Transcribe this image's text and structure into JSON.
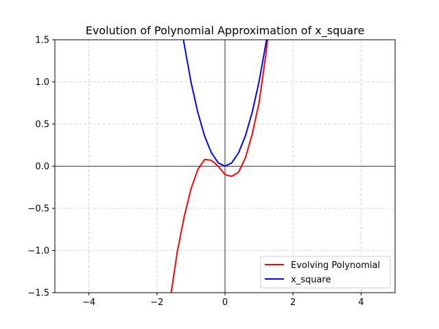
{
  "chart_data": {
    "type": "line",
    "title": "Evolution of Polynomial Approximation of x_square",
    "xlabel": "",
    "ylabel": "",
    "xlim": [
      -5,
      5
    ],
    "ylim": [
      -1.5,
      1.5
    ],
    "x_ticks": [
      -4,
      -2,
      0,
      2,
      4
    ],
    "y_ticks": [
      -1.5,
      -1.0,
      -0.5,
      0.0,
      0.5,
      1.0,
      1.5
    ],
    "x_tick_labels": [
      "−4",
      "−2",
      "0",
      "2",
      "4"
    ],
    "y_tick_labels": [
      "−1.5",
      "−1.0",
      "−0.5",
      "0.0",
      "0.5",
      "1.0",
      "1.5"
    ],
    "grid": true,
    "grid_style": "dashed",
    "legend_position": "lower-right",
    "series": [
      {
        "name": "Evolving Polynomial",
        "color": "#ff0000",
        "x": [
          -1.6,
          -1.4,
          -1.2,
          -1.0,
          -0.8,
          -0.6,
          -0.4,
          -0.2,
          0.0,
          0.2,
          0.4,
          0.6,
          0.8,
          1.0,
          1.2,
          1.3
        ],
        "y": [
          -1.55,
          -1.01,
          -0.6,
          -0.27,
          -0.04,
          0.08,
          0.07,
          0.0,
          -0.1,
          -0.12,
          -0.07,
          0.1,
          0.38,
          0.75,
          1.32,
          1.67
        ]
      },
      {
        "name": "x_square",
        "color": "#0000ff",
        "x": [
          -1.24,
          -1.0,
          -0.8,
          -0.6,
          -0.4,
          -0.2,
          0.0,
          0.2,
          0.4,
          0.6,
          0.8,
          1.0,
          1.24
        ],
        "y": [
          1.54,
          1.0,
          0.64,
          0.36,
          0.16,
          0.04,
          0.0,
          0.04,
          0.16,
          0.36,
          0.64,
          1.0,
          1.54
        ]
      }
    ]
  }
}
